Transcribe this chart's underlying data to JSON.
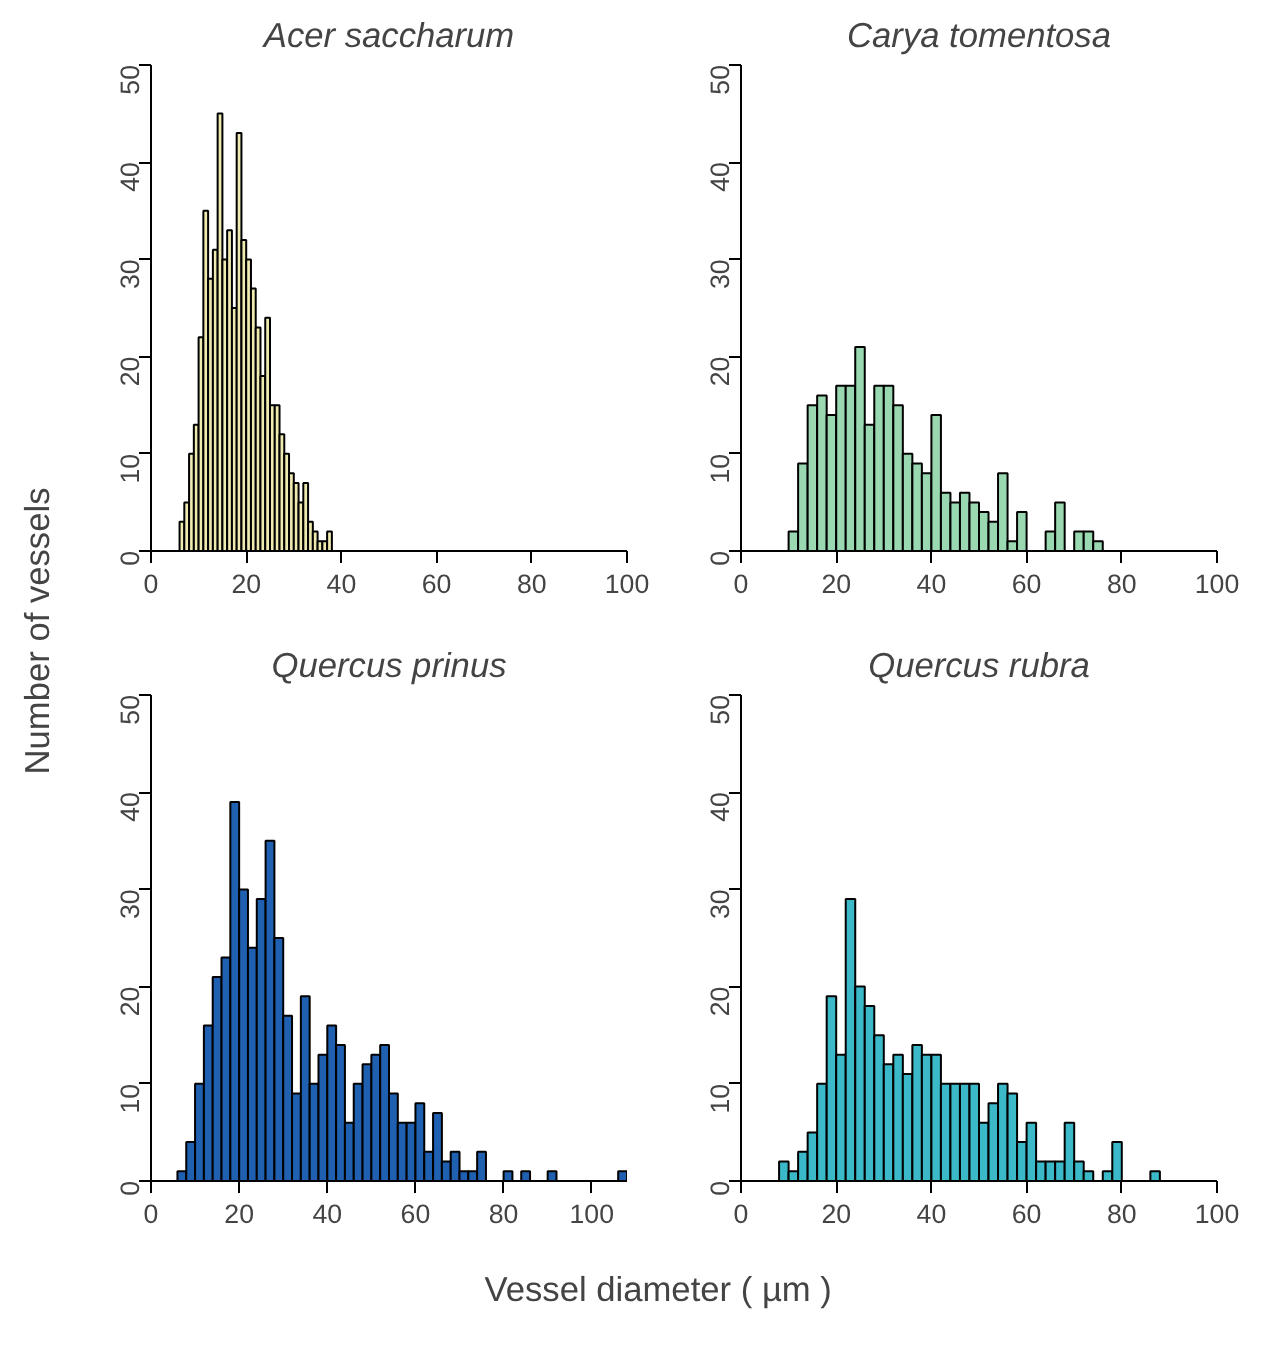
{
  "chart_data": [
    {
      "type": "histogram",
      "title": "Acer saccharum",
      "ylabel": "Number of vessels",
      "color": "#efeab0",
      "bins": [
        6,
        7,
        8,
        9,
        10,
        11,
        12,
        13,
        14,
        15,
        16,
        17,
        18,
        19,
        20,
        21,
        22,
        23,
        24,
        25,
        26,
        27,
        28,
        29,
        30,
        31,
        32,
        33,
        34,
        35,
        36,
        37,
        38
      ],
      "values": [
        3,
        5,
        10,
        13,
        22,
        35,
        28,
        31,
        45,
        30,
        33,
        25,
        43,
        32,
        30,
        27,
        23,
        18,
        24,
        15,
        15,
        12,
        10,
        8,
        7,
        5,
        7,
        3,
        2,
        1,
        1,
        2
      ],
      "xlim": [
        0,
        100
      ],
      "xticks": [
        0,
        20,
        40,
        60,
        80,
        100
      ],
      "ylim": [
        0,
        50
      ],
      "yticks": [
        0,
        10,
        20,
        30,
        40,
        50
      ],
      "grid": false
    },
    {
      "type": "histogram",
      "title": "Carya tomentosa",
      "color": "#99d8b0",
      "bins": [
        10,
        12,
        14,
        16,
        18,
        20,
        22,
        24,
        26,
        28,
        30,
        32,
        34,
        36,
        38,
        40,
        42,
        44,
        46,
        48,
        50,
        52,
        54,
        56,
        58,
        60,
        62,
        64,
        66,
        68,
        70,
        72,
        74,
        76
      ],
      "values": [
        2,
        9,
        15,
        16,
        14,
        17,
        17,
        21,
        13,
        17,
        17,
        15,
        10,
        9,
        8,
        14,
        6,
        5,
        6,
        5,
        4,
        3,
        8,
        1,
        4,
        0,
        0,
        2,
        5,
        0,
        2,
        2,
        1
      ],
      "xlim": [
        0,
        100
      ],
      "xticks": [
        0,
        20,
        40,
        60,
        80,
        100
      ],
      "ylim": [
        0,
        50
      ],
      "yticks": [
        0,
        10,
        20,
        30,
        40,
        50
      ],
      "grid": false
    },
    {
      "type": "histogram",
      "title": "Quercus prinus",
      "xlabel": "Vessel diameter ( µm )",
      "color": "#2060b0",
      "bins": [
        6,
        8,
        10,
        12,
        14,
        16,
        18,
        20,
        22,
        24,
        26,
        28,
        30,
        32,
        34,
        36,
        38,
        40,
        42,
        44,
        46,
        48,
        50,
        52,
        54,
        56,
        58,
        60,
        62,
        64,
        66,
        68,
        70,
        72,
        74,
        76,
        78,
        80,
        82,
        84,
        86,
        88,
        90,
        92,
        94,
        96,
        98,
        100,
        102,
        104,
        106,
        108
      ],
      "values": [
        1,
        4,
        10,
        16,
        21,
        23,
        39,
        30,
        24,
        29,
        35,
        25,
        17,
        9,
        19,
        10,
        13,
        16,
        14,
        6,
        10,
        12,
        13,
        14,
        9,
        6,
        6,
        8,
        3,
        7,
        2,
        3,
        1,
        1,
        3,
        0,
        0,
        1,
        0,
        1,
        0,
        0,
        1,
        0,
        0,
        0,
        0,
        0,
        0,
        0,
        1
      ],
      "xlim": [
        0,
        108
      ],
      "xticks": [
        0,
        20,
        40,
        60,
        80,
        100
      ],
      "ylim": [
        0,
        50
      ],
      "yticks": [
        0,
        10,
        20,
        30,
        40,
        50
      ],
      "grid": false
    },
    {
      "type": "histogram",
      "title": "Quercus rubra",
      "color": "#3bb9c9",
      "bins": [
        8,
        10,
        12,
        14,
        16,
        18,
        20,
        22,
        24,
        26,
        28,
        30,
        32,
        34,
        36,
        38,
        40,
        42,
        44,
        46,
        48,
        50,
        52,
        54,
        56,
        58,
        60,
        62,
        64,
        66,
        68,
        70,
        72,
        74,
        76,
        78,
        80,
        82,
        84,
        86,
        88
      ],
      "values": [
        2,
        1,
        3,
        5,
        10,
        19,
        13,
        29,
        20,
        18,
        15,
        12,
        13,
        11,
        14,
        13,
        13,
        10,
        10,
        10,
        10,
        6,
        8,
        10,
        9,
        4,
        6,
        2,
        2,
        2,
        6,
        2,
        1,
        0,
        1,
        4,
        0,
        0,
        0,
        1
      ],
      "xlim": [
        0,
        100
      ],
      "xticks": [
        0,
        20,
        40,
        60,
        80,
        100
      ],
      "ylim": [
        0,
        50
      ],
      "yticks": [
        0,
        10,
        20,
        30,
        40,
        50
      ],
      "grid": false
    }
  ]
}
